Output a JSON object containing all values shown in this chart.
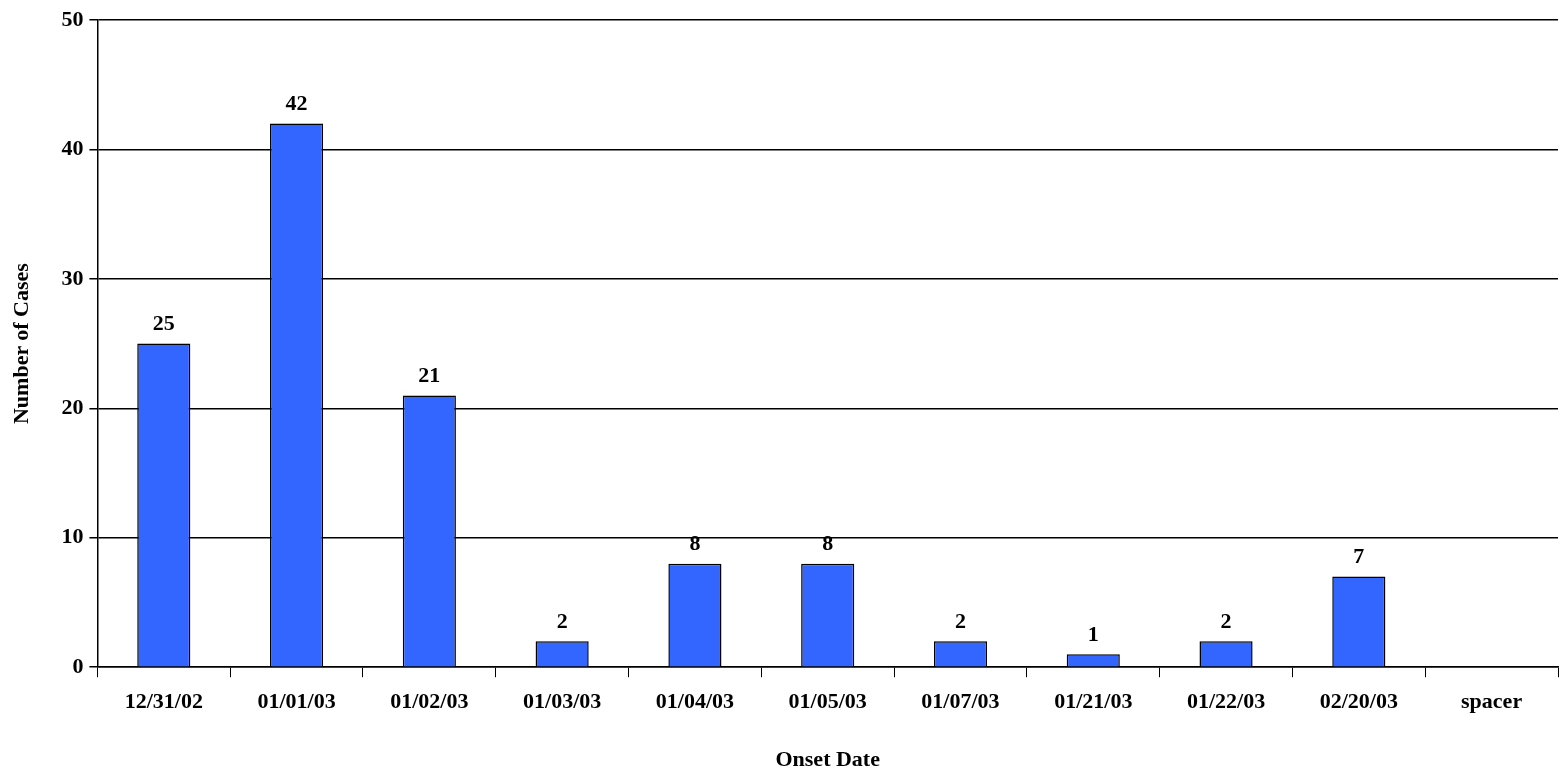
{
  "chart_data": {
    "type": "bar",
    "xlabel": "Onset Date",
    "ylabel": "Number of Cases",
    "categories": [
      "12/31/02",
      "01/01/03",
      "01/02/03",
      "01/03/03",
      "01/04/03",
      "01/05/03",
      "01/07/03",
      "01/21/03",
      "01/22/03",
      "02/20/03",
      "spacer"
    ],
    "values": [
      25,
      42,
      21,
      2,
      8,
      8,
      2,
      1,
      2,
      7,
      null
    ],
    "color": "#3366ff",
    "ylim": [
      0,
      50
    ],
    "yticks": [
      0,
      10,
      20,
      30,
      40,
      50
    ],
    "grid": "y",
    "data_labels": true
  }
}
